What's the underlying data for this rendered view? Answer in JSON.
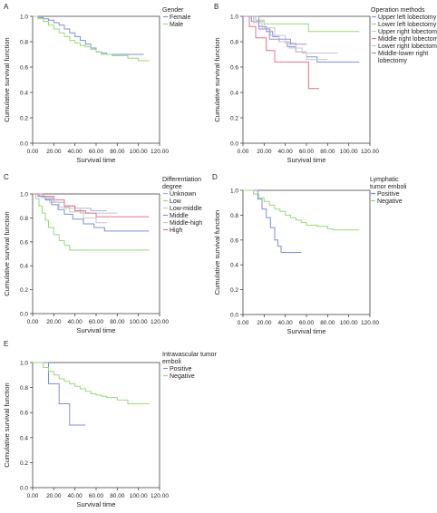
{
  "chart_data": [
    {
      "panel": "A",
      "type": "line",
      "step": true,
      "ylabel": "Cumulative survival function",
      "xlabel": "Survival time",
      "xticks": [
        "0.00",
        "20.00",
        "40.00",
        "60.00",
        "80.00",
        "100.00",
        "120.00"
      ],
      "yticks": [
        "0.0",
        "0.2",
        "0.4",
        "0.6",
        "0.8",
        "1.0"
      ],
      "xlim": [
        0,
        120
      ],
      "ylim": [
        0,
        1.0
      ],
      "legend_title": "Gender",
      "series": [
        {
          "name": "Female",
          "color": "#7f8fdc",
          "points": [
            [
              0,
              1
            ],
            [
              5,
              0.99
            ],
            [
              10,
              0.98
            ],
            [
              15,
              0.97
            ],
            [
              20,
              0.95
            ],
            [
              25,
              0.93
            ],
            [
              30,
              0.9
            ],
            [
              35,
              0.87
            ],
            [
              40,
              0.84
            ],
            [
              45,
              0.81
            ],
            [
              50,
              0.78
            ],
            [
              55,
              0.75
            ],
            [
              60,
              0.72
            ],
            [
              65,
              0.71
            ],
            [
              70,
              0.7
            ],
            [
              105,
              0.7
            ]
          ]
        },
        {
          "name": "Male",
          "color": "#9ad97b",
          "points": [
            [
              0,
              1
            ],
            [
              5,
              0.98
            ],
            [
              10,
              0.96
            ],
            [
              15,
              0.93
            ],
            [
              20,
              0.9
            ],
            [
              25,
              0.87
            ],
            [
              30,
              0.84
            ],
            [
              35,
              0.81
            ],
            [
              40,
              0.79
            ],
            [
              45,
              0.77
            ],
            [
              50,
              0.76
            ],
            [
              55,
              0.74
            ],
            [
              60,
              0.72
            ],
            [
              65,
              0.7
            ],
            [
              75,
              0.69
            ],
            [
              90,
              0.67
            ],
            [
              100,
              0.65
            ],
            [
              110,
              0.65
            ]
          ]
        }
      ]
    },
    {
      "panel": "B",
      "type": "line",
      "step": true,
      "ylabel": "Cumulative survival function",
      "xlabel": "Survival time",
      "xticks": [
        "0.00",
        "20.00",
        "40.00",
        "60.00",
        "80.00",
        "100.00",
        "120.00"
      ],
      "yticks": [
        "0.0",
        "0.2",
        "0.4",
        "0.6",
        "0.8",
        "1.0"
      ],
      "xlim": [
        0,
        120
      ],
      "ylim": [
        0,
        1.0
      ],
      "legend_title": "Operation methods",
      "series": [
        {
          "name": "Upper left lobectomy",
          "color": "#7f8fdc",
          "points": [
            [
              0,
              1
            ],
            [
              8,
              0.96
            ],
            [
              15,
              0.92
            ],
            [
              22,
              0.88
            ],
            [
              28,
              0.84
            ],
            [
              34,
              0.8
            ],
            [
              42,
              0.76
            ],
            [
              50,
              0.72
            ],
            [
              60,
              0.68
            ],
            [
              70,
              0.64
            ],
            [
              110,
              0.64
            ]
          ]
        },
        {
          "name": "Lower left lobectomy",
          "color": "#9ad97b",
          "points": [
            [
              0,
              1
            ],
            [
              12,
              0.97
            ],
            [
              20,
              0.94
            ],
            [
              58,
              0.94
            ],
            [
              62,
              0.88
            ],
            [
              110,
              0.88
            ]
          ]
        },
        {
          "name": "Upper right lobectomy",
          "color": "#c8c8c8",
          "points": [
            [
              0,
              1
            ],
            [
              10,
              0.95
            ],
            [
              18,
              0.9
            ],
            [
              26,
              0.85
            ],
            [
              34,
              0.8
            ],
            [
              44,
              0.75
            ],
            [
              56,
              0.71
            ],
            [
              90,
              0.71
            ]
          ]
        },
        {
          "name": "Middle right lobectomy",
          "color": "#e4758d",
          "points": [
            [
              0,
              1
            ],
            [
              6,
              0.92
            ],
            [
              12,
              0.83
            ],
            [
              22,
              0.73
            ],
            [
              30,
              0.64
            ],
            [
              60,
              0.64
            ],
            [
              62,
              0.43
            ],
            [
              72,
              0.43
            ]
          ]
        },
        {
          "name": "Lower right lobectomy",
          "color": "#c8c8c8",
          "points": [
            [
              0,
              1
            ],
            [
              10,
              0.96
            ],
            [
              20,
              0.91
            ],
            [
              30,
              0.85
            ],
            [
              40,
              0.79
            ],
            [
              50,
              0.72
            ],
            [
              60,
              0.66
            ],
            [
              80,
              0.66
            ]
          ]
        },
        {
          "name": "Middle-lower right lobectomy",
          "color": "#a78fd0",
          "points": [
            [
              0,
              1
            ],
            [
              15,
              0.9
            ],
            [
              25,
              0.82
            ],
            [
              40,
              0.82
            ],
            [
              45,
              0.78
            ],
            [
              60,
              0.78
            ]
          ]
        }
      ]
    },
    {
      "panel": "C",
      "type": "line",
      "step": true,
      "ylabel": "Cumulative survival function",
      "xlabel": "Survival time",
      "xticks": [
        "0.00",
        "20.00",
        "40.00",
        "60.00",
        "80.00",
        "100.00",
        "120.00"
      ],
      "yticks": [
        "0.0",
        "0.2",
        "0.4",
        "0.6",
        "0.8",
        "1.0"
      ],
      "xlim": [
        0,
        120
      ],
      "ylim": [
        0,
        1.0
      ],
      "legend_title": "Differentiation degree",
      "series": [
        {
          "name": "Unknown",
          "color": "#9fb4e8",
          "points": [
            [
              0,
              1
            ],
            [
              5,
              0.98
            ],
            [
              12,
              0.96
            ],
            [
              20,
              0.93
            ],
            [
              30,
              0.9
            ],
            [
              40,
              0.88
            ],
            [
              55,
              0.86
            ],
            [
              70,
              0.86
            ]
          ]
        },
        {
          "name": "Low",
          "color": "#9ad97b",
          "points": [
            [
              0,
              1
            ],
            [
              3,
              0.96
            ],
            [
              6,
              0.9
            ],
            [
              9,
              0.84
            ],
            [
              12,
              0.78
            ],
            [
              15,
              0.72
            ],
            [
              20,
              0.66
            ],
            [
              25,
              0.61
            ],
            [
              30,
              0.57
            ],
            [
              35,
              0.53
            ],
            [
              55,
              0.53
            ],
            [
              110,
              0.53
            ]
          ]
        },
        {
          "name": "Low-middle",
          "color": "#c8c8c8",
          "points": [
            [
              0,
              1
            ],
            [
              8,
              0.97
            ],
            [
              16,
              0.93
            ],
            [
              25,
              0.89
            ],
            [
              35,
              0.85
            ],
            [
              48,
              0.8
            ],
            [
              60,
              0.76
            ],
            [
              70,
              0.76
            ]
          ]
        },
        {
          "name": "Middle",
          "color": "#7f8fdc",
          "points": [
            [
              0,
              1
            ],
            [
              6,
              0.98
            ],
            [
              12,
              0.95
            ],
            [
              18,
              0.91
            ],
            [
              24,
              0.87
            ],
            [
              30,
              0.83
            ],
            [
              38,
              0.79
            ],
            [
              48,
              0.75
            ],
            [
              58,
              0.72
            ],
            [
              68,
              0.69
            ],
            [
              110,
              0.69
            ]
          ]
        },
        {
          "name": "Middle-high",
          "color": "#c8c8c8",
          "points": [
            [
              0,
              1
            ],
            [
              10,
              0.97
            ],
            [
              20,
              0.93
            ],
            [
              30,
              0.88
            ],
            [
              45,
              0.84
            ],
            [
              80,
              0.84
            ]
          ]
        },
        {
          "name": "High",
          "color": "#e4758d",
          "points": [
            [
              0,
              1
            ],
            [
              10,
              0.98
            ],
            [
              20,
              0.95
            ],
            [
              30,
              0.9
            ],
            [
              40,
              0.86
            ],
            [
              50,
              0.84
            ],
            [
              60,
              0.81
            ],
            [
              110,
              0.81
            ]
          ]
        }
      ]
    },
    {
      "panel": "D",
      "type": "line",
      "step": true,
      "ylabel": "Cumulative survival function",
      "xlabel": "Survival time",
      "xticks": [
        "0.00",
        "20.00",
        "40.00",
        "60.00",
        "80.00",
        "100.00",
        "120.00"
      ],
      "yticks": [
        "0.0",
        "0.2",
        "0.4",
        "0.6",
        "0.8",
        "1.0"
      ],
      "xlim": [
        0,
        120
      ],
      "ylim": [
        0,
        1.0
      ],
      "legend_title": "Lymphatic tumor emboli",
      "series": [
        {
          "name": "Positive",
          "color": "#7f8fdc",
          "points": [
            [
              0,
              1
            ],
            [
              10,
              1
            ],
            [
              14,
              0.93
            ],
            [
              18,
              0.85
            ],
            [
              22,
              0.78
            ],
            [
              26,
              0.7
            ],
            [
              30,
              0.6
            ],
            [
              33,
              0.55
            ],
            [
              36,
              0.5
            ],
            [
              55,
              0.5
            ]
          ]
        },
        {
          "name": "Negative",
          "color": "#9ad97b",
          "points": [
            [
              0,
              1
            ],
            [
              10,
              0.97
            ],
            [
              15,
              0.94
            ],
            [
              20,
              0.91
            ],
            [
              25,
              0.88
            ],
            [
              30,
              0.85
            ],
            [
              35,
              0.83
            ],
            [
              40,
              0.8
            ],
            [
              45,
              0.78
            ],
            [
              50,
              0.76
            ],
            [
              55,
              0.74
            ],
            [
              60,
              0.72
            ],
            [
              70,
              0.71
            ],
            [
              80,
              0.69
            ],
            [
              85,
              0.68
            ],
            [
              110,
              0.68
            ]
          ]
        }
      ]
    },
    {
      "panel": "E",
      "type": "line",
      "step": true,
      "ylabel": "Cumulative survival function",
      "xlabel": "Survival time",
      "xticks": [
        "0.00",
        "20.00",
        "40.00",
        "60.00",
        "80.00",
        "100.00",
        "120.00"
      ],
      "yticks": [
        "0.0",
        "0.2",
        "0.4",
        "0.6",
        "0.8",
        "1.0"
      ],
      "xlim": [
        0,
        120
      ],
      "ylim": [
        0,
        1.0
      ],
      "legend_title": "Intravascular tumor emboli",
      "series": [
        {
          "name": "Positive",
          "color": "#7f8fdc",
          "points": [
            [
              0,
              1
            ],
            [
              15,
              1
            ],
            [
              15,
              0.83
            ],
            [
              25,
              0.83
            ],
            [
              25,
              0.67
            ],
            [
              35,
              0.67
            ],
            [
              35,
              0.5
            ],
            [
              50,
              0.5
            ]
          ]
        },
        {
          "name": "Negative",
          "color": "#9ad97b",
          "points": [
            [
              0,
              1
            ],
            [
              10,
              0.96
            ],
            [
              15,
              0.93
            ],
            [
              20,
              0.9
            ],
            [
              25,
              0.87
            ],
            [
              30,
              0.85
            ],
            [
              35,
              0.83
            ],
            [
              40,
              0.81
            ],
            [
              45,
              0.79
            ],
            [
              50,
              0.77
            ],
            [
              55,
              0.75
            ],
            [
              60,
              0.74
            ],
            [
              65,
              0.73
            ],
            [
              70,
              0.72
            ],
            [
              80,
              0.7
            ],
            [
              90,
              0.67
            ],
            [
              110,
              0.67
            ]
          ]
        }
      ]
    }
  ]
}
